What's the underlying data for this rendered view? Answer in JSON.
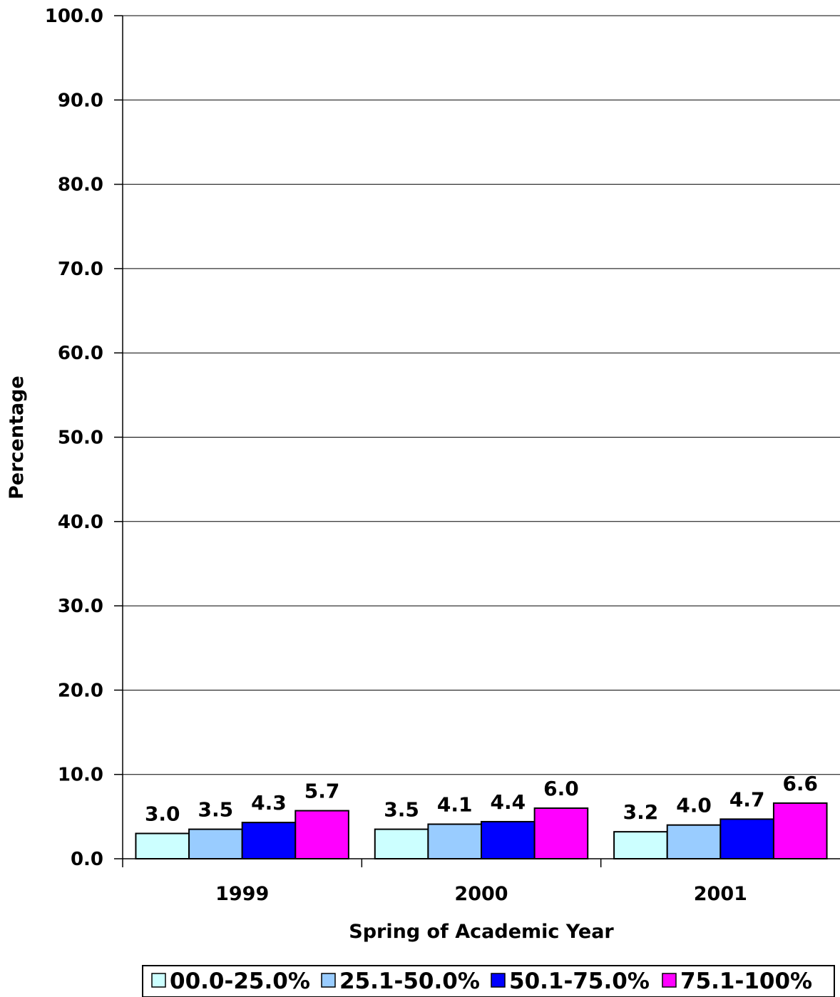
{
  "chart_data": {
    "type": "bar",
    "title": "",
    "xlabel": "Spring of Academic Year",
    "ylabel": "Percentage",
    "ylim": [
      0,
      100
    ],
    "ytick_step": 10,
    "ytick_labels": [
      "0.0",
      "10.0",
      "20.0",
      "30.0",
      "40.0",
      "50.0",
      "60.0",
      "70.0",
      "80.0",
      "90.0",
      "100.0"
    ],
    "categories": [
      "1999",
      "2000",
      "2001"
    ],
    "series": [
      {
        "name": "00.0-25.0%",
        "color": "#ccffff",
        "values": [
          3.0,
          3.5,
          3.2
        ],
        "labels": [
          "3.0",
          "3.5",
          "3.2"
        ]
      },
      {
        "name": "25.1-50.0%",
        "color": "#99ccff",
        "values": [
          3.5,
          4.1,
          4.0
        ],
        "labels": [
          "3.5",
          "4.1",
          "4.0"
        ]
      },
      {
        "name": "50.1-75.0%",
        "color": "#0000ff",
        "values": [
          4.3,
          4.4,
          4.7
        ],
        "labels": [
          "4.3",
          "4.4",
          "4.7"
        ]
      },
      {
        "name": "75.1-100%",
        "color": "#ff00ff",
        "values": [
          5.7,
          6.0,
          6.6
        ],
        "labels": [
          "5.7",
          "6.0",
          "6.6"
        ]
      }
    ],
    "grid": true,
    "legend_position": "bottom"
  }
}
